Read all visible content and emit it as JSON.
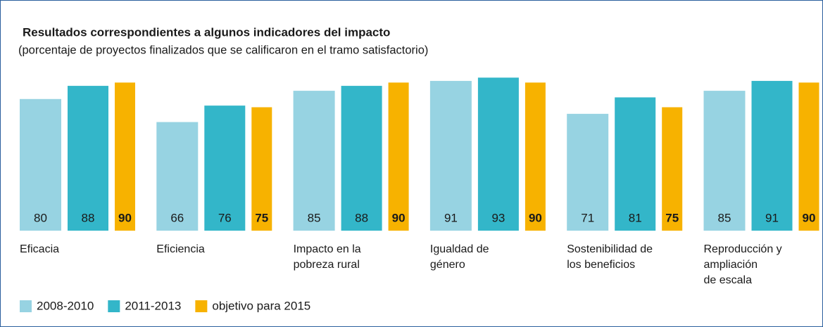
{
  "chart_data": {
    "type": "bar",
    "title": "Resultados correspondientes a algunos indicadores del impacto",
    "subtitle": "(porcentaje de proyectos finalizados que se calificaron en el tramo satisfactorio)",
    "categories": [
      [
        "Eficacia"
      ],
      [
        "Eficiencia"
      ],
      [
        "Impacto en la",
        "pobreza rural"
      ],
      [
        "Igualdad de",
        "género"
      ],
      [
        "Sostenibilidad de",
        "los beneficios"
      ],
      [
        "Reproducción y",
        "ampliación",
        "de escala"
      ]
    ],
    "series": [
      {
        "name": "2008-2010",
        "color": "#97d3e2",
        "values": [
          80,
          66,
          85,
          91,
          71,
          85
        ]
      },
      {
        "name": "2011-2013",
        "color": "#33b6c9",
        "values": [
          88,
          76,
          88,
          93,
          81,
          91
        ]
      },
      {
        "name": "objetivo para 2015",
        "color": "#f7b200",
        "values": [
          90,
          75,
          90,
          90,
          75,
          90
        ]
      }
    ],
    "legend": "bottom-left"
  }
}
